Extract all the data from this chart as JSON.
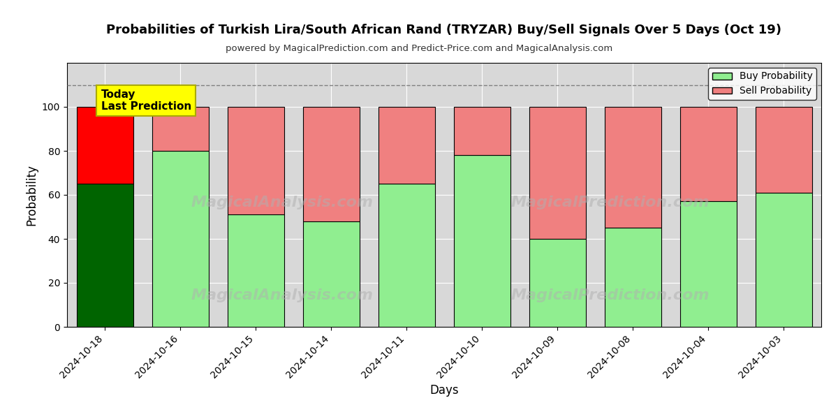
{
  "title": "Probabilities of Turkish Lira/South African Rand (TRYZAR) Buy/Sell Signals Over 5 Days (Oct 19)",
  "subtitle": "powered by MagicalPrediction.com and Predict-Price.com and MagicalAnalysis.com",
  "xlabel": "Days",
  "ylabel": "Probability",
  "dates": [
    "2024-10-18",
    "2024-10-16",
    "2024-10-15",
    "2024-10-14",
    "2024-10-11",
    "2024-10-10",
    "2024-10-09",
    "2024-10-08",
    "2024-10-04",
    "2024-10-03"
  ],
  "buy_values": [
    65,
    80,
    51,
    48,
    65,
    78,
    40,
    45,
    57,
    61
  ],
  "sell_values": [
    35,
    20,
    49,
    52,
    35,
    22,
    60,
    55,
    43,
    39
  ],
  "buy_color_today": "#006400",
  "sell_color_today": "#ff0000",
  "buy_color_other": "#90EE90",
  "sell_color_other": "#F08080",
  "bar_edgecolor": "#000000",
  "today_annotation_text": "Today\nLast Prediction",
  "today_annotation_bg": "#ffff00",
  "legend_buy": "Buy Probability",
  "legend_sell": "Sell Probability",
  "ylim": [
    0,
    120
  ],
  "dashed_line_y": 110,
  "grid_color": "#ffffff",
  "bg_color": "#d8d8d8"
}
